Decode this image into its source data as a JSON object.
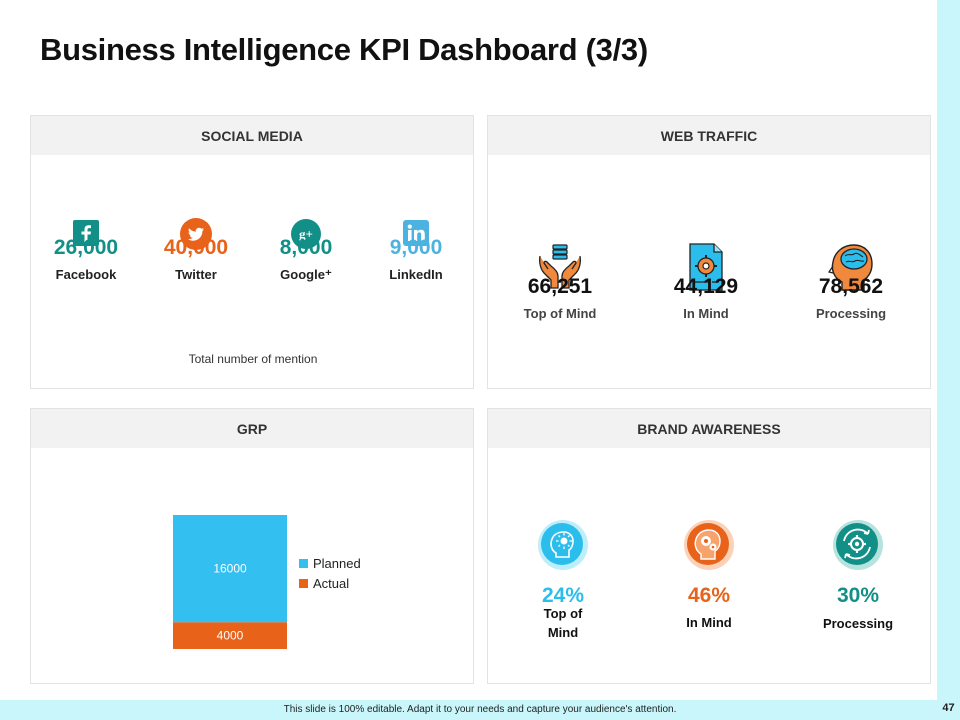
{
  "title": "Business Intelligence KPI Dashboard (3/3)",
  "footer": "This slide is 100% editable.  Adapt it to your needs and capture your audience's attention.",
  "page_number": "47",
  "colors": {
    "teal": "#128f86",
    "orange": "#e8621a",
    "blue": "#2bbdec",
    "linkedin": "#4cb3e0",
    "strip": "#c8f6fa"
  },
  "social": {
    "title": "SOCIAL MEDIA",
    "caption": "Total number of mention",
    "items": [
      {
        "icon": "facebook-icon",
        "value": "26,000",
        "label": "Facebook",
        "color": "#128f86"
      },
      {
        "icon": "twitter-icon",
        "value": "40,000",
        "label": "Twitter",
        "color": "#e8621a"
      },
      {
        "icon": "google-plus-icon",
        "value": "8,000",
        "label": "Google⁺",
        "color": "#128f86"
      },
      {
        "icon": "linkedin-icon",
        "value": "9,000",
        "label": "LinkedIn",
        "color": "#4cb3e0"
      }
    ]
  },
  "web": {
    "title": "WEB TRAFFIC",
    "items": [
      {
        "icon": "hands-database-icon",
        "value": "66,251",
        "label": "Top of Mind"
      },
      {
        "icon": "document-gear-icon",
        "value": "44,129",
        "label": "In Mind"
      },
      {
        "icon": "head-brain-icon",
        "value": "78,562",
        "label": "Processing"
      }
    ]
  },
  "grp": {
    "title": "GRP",
    "chart_data": {
      "type": "bar",
      "stacked": true,
      "categories": [
        ""
      ],
      "series": [
        {
          "name": "Planned",
          "values": [
            16000
          ],
          "color": "#33bff0"
        },
        {
          "name": "Actual",
          "values": [
            4000
          ],
          "color": "#e8621a"
        }
      ],
      "data_labels": [
        "16000",
        "4000"
      ],
      "legend": "right"
    }
  },
  "brand": {
    "title": "BRAND AWARENESS",
    "items": [
      {
        "icon": "head-idea-icon",
        "value": "24%",
        "label": "Top of\nMind",
        "color": "#2bbdec"
      },
      {
        "icon": "head-gears-icon",
        "value": "46%",
        "label": "In Mind",
        "color": "#e8621a"
      },
      {
        "icon": "cycle-gear-icon",
        "value": "30%",
        "label": "Processing",
        "color": "#128f86"
      }
    ]
  }
}
